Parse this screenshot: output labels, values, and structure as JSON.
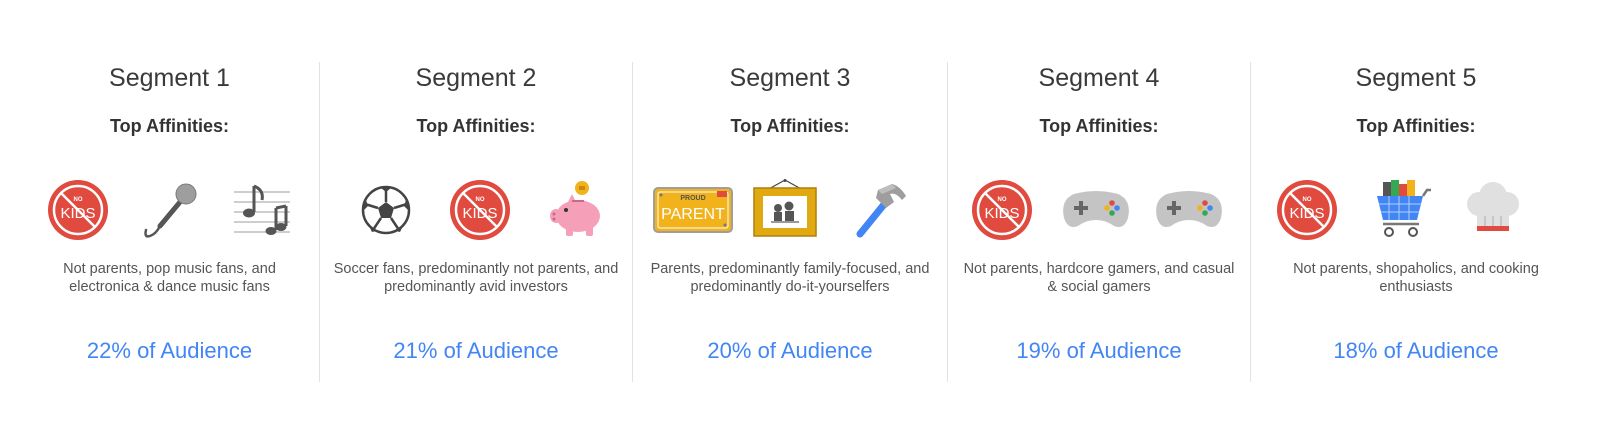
{
  "segments": [
    {
      "title": "Segment 1",
      "subtitle": "Top Affinities:",
      "icons": [
        "no-kids-icon",
        "microphone-icon",
        "music-notes-icon"
      ],
      "no_kids_badge": {
        "small": "NO",
        "big": "KIDS"
      },
      "description": "Not parents, pop music fans, and electronica & dance music fans",
      "audience": "22% of Audience"
    },
    {
      "title": "Segment 2",
      "subtitle": "Top Affinities:",
      "icons": [
        "soccer-ball-icon",
        "no-kids-icon",
        "piggy-bank-icon"
      ],
      "no_kids_badge": {
        "small": "NO",
        "big": "KIDS"
      },
      "description": "Soccer fans, predominantly not parents, and predominantly avid investors",
      "audience": "21% of Audience"
    },
    {
      "title": "Segment 3",
      "subtitle": "Top Affinities:",
      "icons": [
        "proud-parent-plate-icon",
        "family-picture-frame-icon",
        "hammer-icon"
      ],
      "plate": {
        "top": "PROUD",
        "main": "PARENT"
      },
      "description": "Parents, predominantly family-focused, and predominantly do-it-yourselfers",
      "audience": "20% of Audience"
    },
    {
      "title": "Segment 4",
      "subtitle": "Top Affinities:",
      "icons": [
        "no-kids-icon",
        "game-controller-icon",
        "game-controller-icon"
      ],
      "no_kids_badge": {
        "small": "NO",
        "big": "KIDS"
      },
      "description": "Not parents, hardcore gamers, and casual & social gamers",
      "audience": "19% of Audience"
    },
    {
      "title": "Segment 5",
      "subtitle": "Top Affinities:",
      "icons": [
        "no-kids-icon",
        "shopping-cart-icon",
        "chef-hat-icon"
      ],
      "no_kids_badge": {
        "small": "NO",
        "big": "KIDS"
      },
      "description": "Not parents, shopaholics, and cooking enthusiasts",
      "audience": "18% of Audience"
    }
  ],
  "colors": {
    "accent": "#4285f4",
    "no_kids_red": "#e04a3f",
    "plate_yellow": "#f2b21b",
    "icon_gray": "#7a7a7a",
    "piggy_pink": "#f5a0b8"
  }
}
